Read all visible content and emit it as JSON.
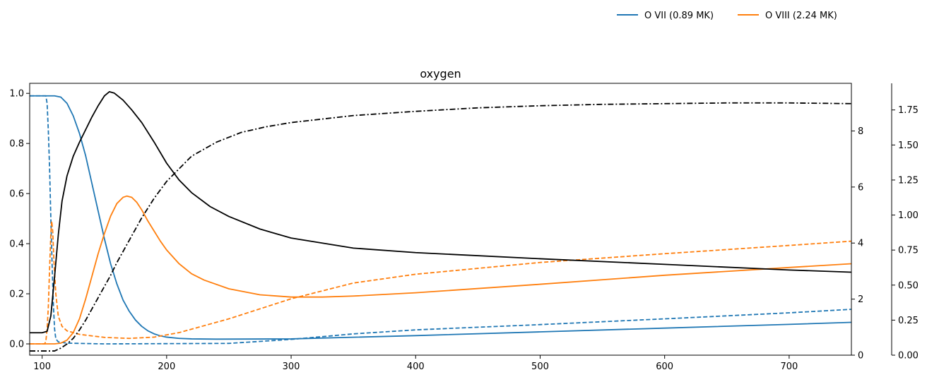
{
  "chart_data": {
    "type": "line",
    "title": "oxygen",
    "xlabel": "",
    "ylabel": "",
    "xlim": [
      90,
      750
    ],
    "x_ticks": [
      100,
      200,
      300,
      400,
      500,
      600,
      700
    ],
    "left_axis": {
      "ylim": [
        -0.045,
        1.04
      ],
      "ticks": [
        0.0,
        0.2,
        0.4,
        0.6,
        0.8,
        1.0
      ],
      "tick_labels": [
        "0.0",
        "0.2",
        "0.4",
        "0.6",
        "0.8",
        "1.0"
      ]
    },
    "right_axis_1": {
      "ylim": [
        0,
        9.7
      ],
      "ticks": [
        0,
        2,
        4,
        6,
        8
      ],
      "tick_labels": [
        "0",
        "2",
        "4",
        "6",
        "8"
      ]
    },
    "right_axis_2": {
      "ylim": [
        0,
        1.94
      ],
      "ticks": [
        0.0,
        0.25,
        0.5,
        0.75,
        1.0,
        1.25,
        1.5,
        1.75
      ],
      "tick_labels": [
        "0.00",
        "0.25",
        "0.50",
        "0.75",
        "1.00",
        "1.25",
        "1.50",
        "1.75"
      ]
    },
    "grid": false,
    "legend": {
      "placement": "top-right",
      "entries": [
        {
          "label": "O VII (0.89 MK)",
          "color": "#1f77b4"
        },
        {
          "label": "O VIII (2.24 MK)",
          "color": "#ff7f0e"
        }
      ]
    },
    "series": [
      {
        "color": "#1f77b4",
        "style": "solid",
        "axis": "left",
        "points": [
          [
            90,
            0.99
          ],
          [
            100,
            0.99
          ],
          [
            110,
            0.99
          ],
          [
            115,
            0.985
          ],
          [
            120,
            0.96
          ],
          [
            125,
            0.91
          ],
          [
            130,
            0.84
          ],
          [
            135,
            0.75
          ],
          [
            140,
            0.64
          ],
          [
            145,
            0.53
          ],
          [
            150,
            0.42
          ],
          [
            155,
            0.32
          ],
          [
            160,
            0.24
          ],
          [
            165,
            0.175
          ],
          [
            170,
            0.13
          ],
          [
            175,
            0.095
          ],
          [
            180,
            0.07
          ],
          [
            185,
            0.052
          ],
          [
            190,
            0.04
          ],
          [
            195,
            0.032
          ],
          [
            200,
            0.027
          ],
          [
            210,
            0.022
          ],
          [
            220,
            0.02
          ],
          [
            240,
            0.019
          ],
          [
            300,
            0.02
          ],
          [
            400,
            0.033
          ],
          [
            500,
            0.048
          ],
          [
            600,
            0.063
          ],
          [
            700,
            0.078
          ],
          [
            750,
            0.086
          ]
        ]
      },
      {
        "color": "#1f77b4",
        "style": "dashed",
        "axis": "left",
        "points": [
          [
            90,
            0.99
          ],
          [
            103,
            0.99
          ],
          [
            104,
            0.96
          ],
          [
            105,
            0.85
          ],
          [
            106,
            0.7
          ],
          [
            107,
            0.5
          ],
          [
            108,
            0.32
          ],
          [
            109,
            0.16
          ],
          [
            110,
            0.06
          ],
          [
            111,
            0.02
          ],
          [
            113,
            0.008
          ],
          [
            120,
            0.003
          ],
          [
            150,
            0.0
          ],
          [
            250,
            0.002
          ],
          [
            300,
            0.018
          ],
          [
            350,
            0.04
          ],
          [
            400,
            0.056
          ],
          [
            500,
            0.077
          ],
          [
            600,
            0.1
          ],
          [
            700,
            0.124
          ],
          [
            750,
            0.138
          ]
        ]
      },
      {
        "color": "#ff7f0e",
        "style": "solid",
        "axis": "left",
        "points": [
          [
            90,
            0.0
          ],
          [
            110,
            0.0
          ],
          [
            115,
            0.003
          ],
          [
            120,
            0.015
          ],
          [
            125,
            0.045
          ],
          [
            130,
            0.1
          ],
          [
            135,
            0.18
          ],
          [
            140,
            0.27
          ],
          [
            145,
            0.36
          ],
          [
            150,
            0.44
          ],
          [
            155,
            0.51
          ],
          [
            160,
            0.56
          ],
          [
            165,
            0.585
          ],
          [
            168,
            0.59
          ],
          [
            172,
            0.585
          ],
          [
            176,
            0.565
          ],
          [
            180,
            0.535
          ],
          [
            185,
            0.49
          ],
          [
            190,
            0.45
          ],
          [
            195,
            0.41
          ],
          [
            200,
            0.375
          ],
          [
            210,
            0.32
          ],
          [
            220,
            0.28
          ],
          [
            230,
            0.255
          ],
          [
            250,
            0.22
          ],
          [
            275,
            0.196
          ],
          [
            300,
            0.187
          ],
          [
            325,
            0.187
          ],
          [
            350,
            0.191
          ],
          [
            400,
            0.204
          ],
          [
            500,
            0.238
          ],
          [
            600,
            0.274
          ],
          [
            700,
            0.305
          ],
          [
            750,
            0.32
          ]
        ]
      },
      {
        "color": "#ff7f0e",
        "style": "dashed",
        "axis": "left",
        "points": [
          [
            90,
            0.0
          ],
          [
            102,
            0.0
          ],
          [
            103,
            0.01
          ],
          [
            104,
            0.06
          ],
          [
            105,
            0.15
          ],
          [
            106,
            0.3
          ],
          [
            107,
            0.44
          ],
          [
            107.7,
            0.49
          ],
          [
            108.5,
            0.45
          ],
          [
            109.5,
            0.33
          ],
          [
            111,
            0.2
          ],
          [
            113,
            0.11
          ],
          [
            116,
            0.07
          ],
          [
            120,
            0.052
          ],
          [
            130,
            0.038
          ],
          [
            150,
            0.026
          ],
          [
            170,
            0.022
          ],
          [
            190,
            0.027
          ],
          [
            210,
            0.045
          ],
          [
            250,
            0.1
          ],
          [
            300,
            0.18
          ],
          [
            350,
            0.243
          ],
          [
            400,
            0.278
          ],
          [
            500,
            0.325
          ],
          [
            600,
            0.36
          ],
          [
            700,
            0.393
          ],
          [
            750,
            0.41
          ]
        ]
      },
      {
        "color": "#000000",
        "style": "solid",
        "axis": "right_1",
        "points": [
          [
            90,
            0.8
          ],
          [
            100,
            0.8
          ],
          [
            104,
            0.85
          ],
          [
            107,
            1.4
          ],
          [
            110,
            2.8
          ],
          [
            113,
            4.3
          ],
          [
            116,
            5.5
          ],
          [
            120,
            6.4
          ],
          [
            125,
            7.1
          ],
          [
            130,
            7.6
          ],
          [
            135,
            8.05
          ],
          [
            140,
            8.5
          ],
          [
            145,
            8.9
          ],
          [
            150,
            9.25
          ],
          [
            154,
            9.4
          ],
          [
            158,
            9.35
          ],
          [
            165,
            9.1
          ],
          [
            172,
            8.75
          ],
          [
            180,
            8.3
          ],
          [
            190,
            7.6
          ],
          [
            200,
            6.85
          ],
          [
            210,
            6.25
          ],
          [
            220,
            5.8
          ],
          [
            235,
            5.3
          ],
          [
            250,
            4.95
          ],
          [
            275,
            4.5
          ],
          [
            300,
            4.18
          ],
          [
            350,
            3.82
          ],
          [
            400,
            3.66
          ],
          [
            500,
            3.44
          ],
          [
            600,
            3.24
          ],
          [
            700,
            3.04
          ],
          [
            750,
            2.96
          ]
        ]
      },
      {
        "color": "#000000",
        "style": "dashdot",
        "axis": "right_2",
        "points": [
          [
            90,
            0.03
          ],
          [
            110,
            0.03
          ],
          [
            115,
            0.05
          ],
          [
            120,
            0.08
          ],
          [
            125,
            0.12
          ],
          [
            130,
            0.18
          ],
          [
            135,
            0.25
          ],
          [
            140,
            0.33
          ],
          [
            145,
            0.41
          ],
          [
            150,
            0.49
          ],
          [
            155,
            0.57
          ],
          [
            160,
            0.66
          ],
          [
            165,
            0.74
          ],
          [
            170,
            0.82
          ],
          [
            175,
            0.9
          ],
          [
            180,
            0.98
          ],
          [
            190,
            1.12
          ],
          [
            200,
            1.24
          ],
          [
            210,
            1.33
          ],
          [
            220,
            1.42
          ],
          [
            240,
            1.52
          ],
          [
            260,
            1.59
          ],
          [
            280,
            1.63
          ],
          [
            300,
            1.66
          ],
          [
            350,
            1.71
          ],
          [
            400,
            1.74
          ],
          [
            450,
            1.765
          ],
          [
            500,
            1.78
          ],
          [
            550,
            1.79
          ],
          [
            600,
            1.795
          ],
          [
            650,
            1.8
          ],
          [
            700,
            1.8
          ],
          [
            750,
            1.795
          ]
        ]
      }
    ]
  }
}
